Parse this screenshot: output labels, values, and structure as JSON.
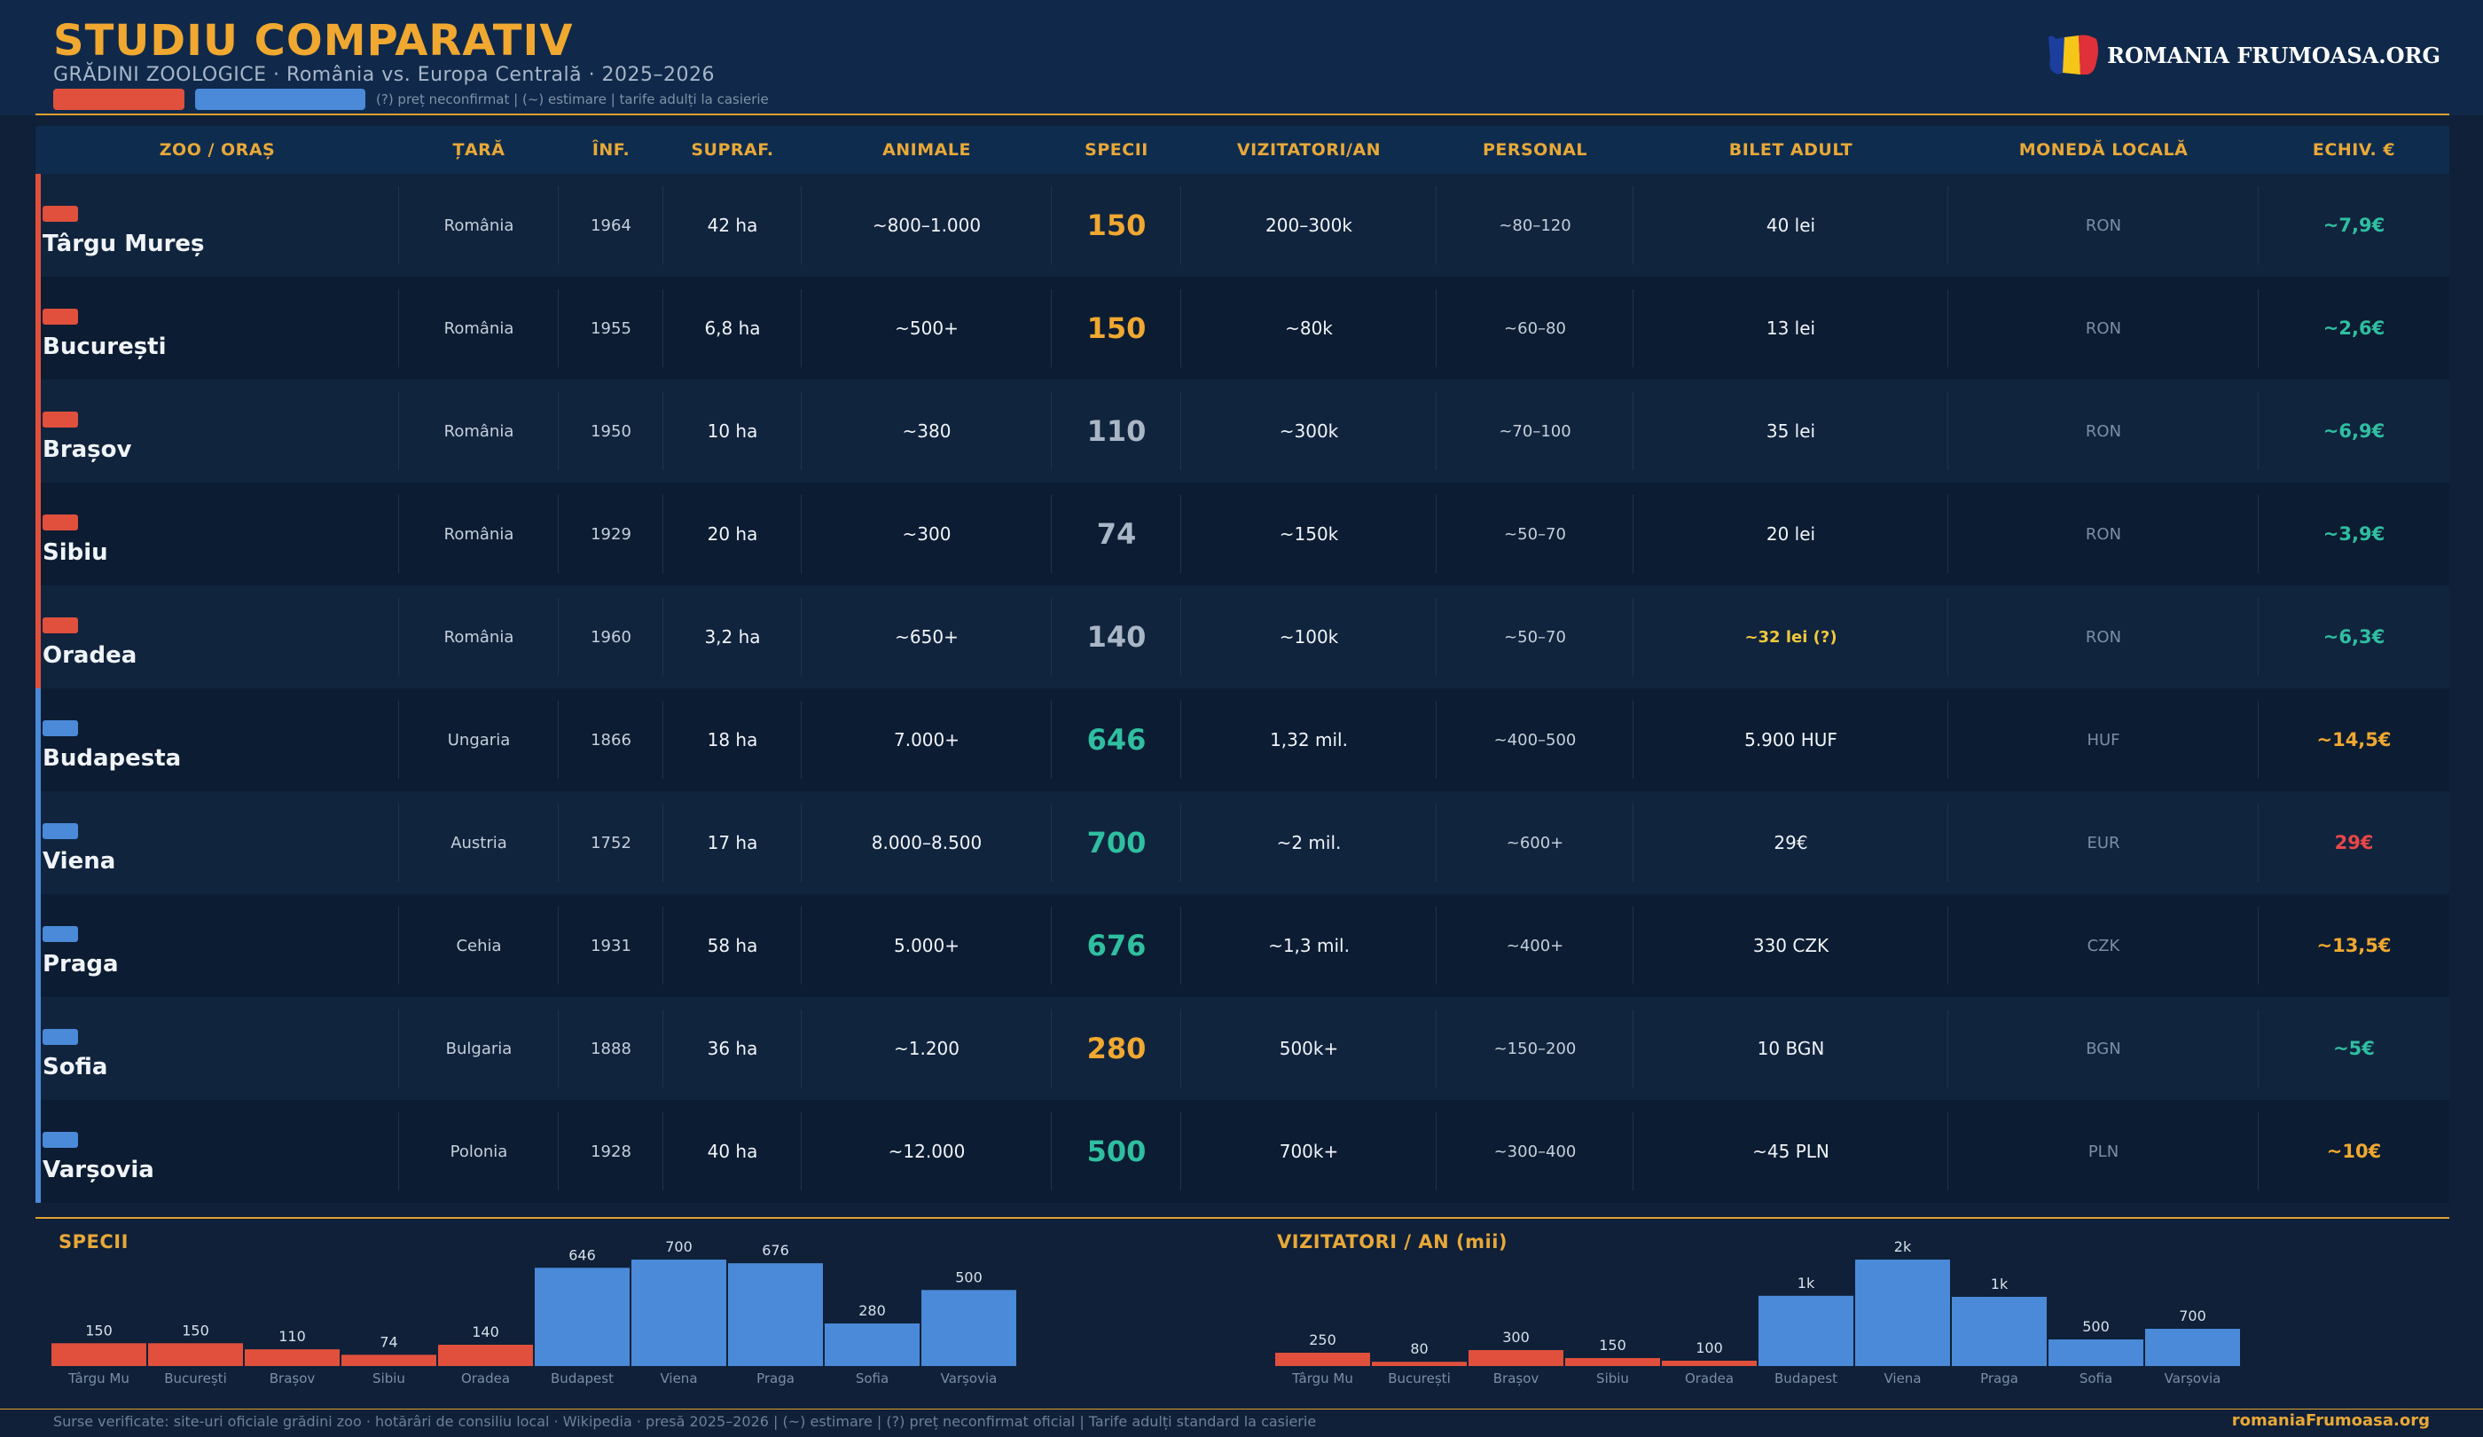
{
  "header": {
    "title": "STUDIU COMPARATIV",
    "subtitle": "GRĂDINI ZOOLOGICE  ·  România vs. Europa Centrală  ·  2025–2026",
    "legend_note": "(?) preț neconfirmat  |  (~) estimare  |  tarife adulți la casierie",
    "logo_text": "ROMANIA FRUMOASA.ORG",
    "flag_colors": [
      "#1c3f9e",
      "#f5c518",
      "#e0303a"
    ]
  },
  "colors": {
    "romania": "#e0503c",
    "europe": "#4a8ad8",
    "accent": "#f0a830",
    "teal": "#2fbfa0",
    "gray_num": "#a9b6c6",
    "red_eur": "#e84848",
    "yellow_flag": "#f0c83a"
  },
  "table": {
    "headers": [
      "ZOO / ORAȘ",
      "ȚARĂ",
      "ÎNF.",
      "SUPRAF.",
      "ANIMALE",
      "SPECII",
      "VIZITATORI/AN",
      "PERSONAL",
      "BILET ADULT",
      "MONEDĂ LOCALĂ",
      "ECHIV. €"
    ],
    "rows": [
      {
        "group": "ro",
        "name": "Târgu Mureș",
        "country": "România",
        "founded": "1964",
        "area": "42 ha",
        "animals": "~800–1.000",
        "species": "150",
        "species_color": "accent",
        "visitors": "200–300k",
        "staff": "~80–120",
        "ticket": "40 lei",
        "ticket_flag": false,
        "currency": "RON",
        "eur": "~7,9€",
        "eur_color": "teal"
      },
      {
        "group": "ro",
        "name": "București",
        "country": "România",
        "founded": "1955",
        "area": "6,8 ha",
        "animals": "~500+",
        "species": "150",
        "species_color": "accent",
        "visitors": "~80k",
        "staff": "~60–80",
        "ticket": "13 lei",
        "ticket_flag": false,
        "currency": "RON",
        "eur": "~2,6€",
        "eur_color": "teal"
      },
      {
        "group": "ro",
        "name": "Brașov",
        "country": "România",
        "founded": "1950",
        "area": "10 ha",
        "animals": "~380",
        "species": "110",
        "species_color": "gray_num",
        "visitors": "~300k",
        "staff": "~70–100",
        "ticket": "35 lei",
        "ticket_flag": false,
        "currency": "RON",
        "eur": "~6,9€",
        "eur_color": "teal"
      },
      {
        "group": "ro",
        "name": "Sibiu",
        "country": "România",
        "founded": "1929",
        "area": "20 ha",
        "animals": "~300",
        "species": "74",
        "species_color": "gray_num",
        "visitors": "~150k",
        "staff": "~50–70",
        "ticket": "20 lei",
        "ticket_flag": false,
        "currency": "RON",
        "eur": "~3,9€",
        "eur_color": "teal"
      },
      {
        "group": "ro",
        "name": "Oradea",
        "country": "România",
        "founded": "1960",
        "area": "3,2 ha",
        "animals": "~650+",
        "species": "140",
        "species_color": "gray_num",
        "visitors": "~100k",
        "staff": "~50–70",
        "ticket": "~32 lei (?)",
        "ticket_flag": true,
        "currency": "RON",
        "eur": "~6,3€",
        "eur_color": "teal"
      },
      {
        "group": "eu",
        "name": "Budapesta",
        "country": "Ungaria",
        "founded": "1866",
        "area": "18 ha",
        "animals": "7.000+",
        "species": "646",
        "species_color": "teal",
        "visitors": "1,32 mil.",
        "staff": "~400–500",
        "ticket": "5.900 HUF",
        "ticket_flag": false,
        "currency": "HUF",
        "eur": "~14,5€",
        "eur_color": "accent"
      },
      {
        "group": "eu",
        "name": "Viena",
        "country": "Austria",
        "founded": "1752",
        "area": "17 ha",
        "animals": "8.000–8.500",
        "species": "700",
        "species_color": "teal",
        "visitors": "~2 mil.",
        "staff": "~600+",
        "ticket": "29€",
        "ticket_flag": false,
        "currency": "EUR",
        "eur": "29€",
        "eur_color": "red_eur"
      },
      {
        "group": "eu",
        "name": "Praga",
        "country": "Cehia",
        "founded": "1931",
        "area": "58 ha",
        "animals": "5.000+",
        "species": "676",
        "species_color": "teal",
        "visitors": "~1,3 mil.",
        "staff": "~400+",
        "ticket": "330 CZK",
        "ticket_flag": false,
        "currency": "CZK",
        "eur": "~13,5€",
        "eur_color": "accent"
      },
      {
        "group": "eu",
        "name": "Sofia",
        "country": "Bulgaria",
        "founded": "1888",
        "area": "36 ha",
        "animals": "~1.200",
        "species": "280",
        "species_color": "accent",
        "visitors": "500k+",
        "staff": "~150–200",
        "ticket": "10 BGN",
        "ticket_flag": false,
        "currency": "BGN",
        "eur": "~5€",
        "eur_color": "teal"
      },
      {
        "group": "eu",
        "name": "Varșovia",
        "country": "Polonia",
        "founded": "1928",
        "area": "40 ha",
        "animals": "~12.000",
        "species": "500",
        "species_color": "teal",
        "visitors": "700k+",
        "staff": "~300–400",
        "ticket": "~45 PLN",
        "ticket_flag": false,
        "currency": "PLN",
        "eur": "~10€",
        "eur_color": "accent"
      }
    ]
  },
  "chart_data": [
    {
      "type": "bar",
      "title": "SPECII",
      "categories": [
        "Târgu Mu",
        "București",
        "Brașov",
        "Sibiu",
        "Oradea",
        "Budapest",
        "Viena",
        "Praga",
        "Sofia",
        "Varșovia"
      ],
      "groups": [
        "ro",
        "ro",
        "ro",
        "ro",
        "ro",
        "eu",
        "eu",
        "eu",
        "eu",
        "eu"
      ],
      "values": [
        150,
        150,
        110,
        74,
        140,
        646,
        700,
        676,
        280,
        500
      ],
      "labels": [
        "150",
        "150",
        "110",
        "74",
        "140",
        "646",
        "700",
        "676",
        "280",
        "500"
      ],
      "ylim": [
        0,
        700
      ]
    },
    {
      "type": "bar",
      "title": "VIZITATORI / AN  (mii)",
      "categories": [
        "Târgu Mu",
        "București",
        "Brașov",
        "Sibiu",
        "Oradea",
        "Budapest",
        "Viena",
        "Praga",
        "Sofia",
        "Varșovia"
      ],
      "groups": [
        "ro",
        "ro",
        "ro",
        "ro",
        "ro",
        "eu",
        "eu",
        "eu",
        "eu",
        "eu"
      ],
      "values": [
        250,
        80,
        300,
        150,
        100,
        1320,
        2000,
        1300,
        500,
        700
      ],
      "labels": [
        "250",
        "80",
        "300",
        "150",
        "100",
        "1k",
        "2k",
        "1k",
        "500",
        "700"
      ],
      "ylim": [
        0,
        2000
      ]
    }
  ],
  "footer": {
    "sources": "Surse verificate: site-uri oficiale grădini zoo · hotărâri de consiliu local · Wikipedia · presă 2025–2026  |  (~) estimare  |  (?) preț neconfirmat oficial  |  Tarife adulți standard la casierie",
    "site": "romaniaFrumoasa.org"
  }
}
